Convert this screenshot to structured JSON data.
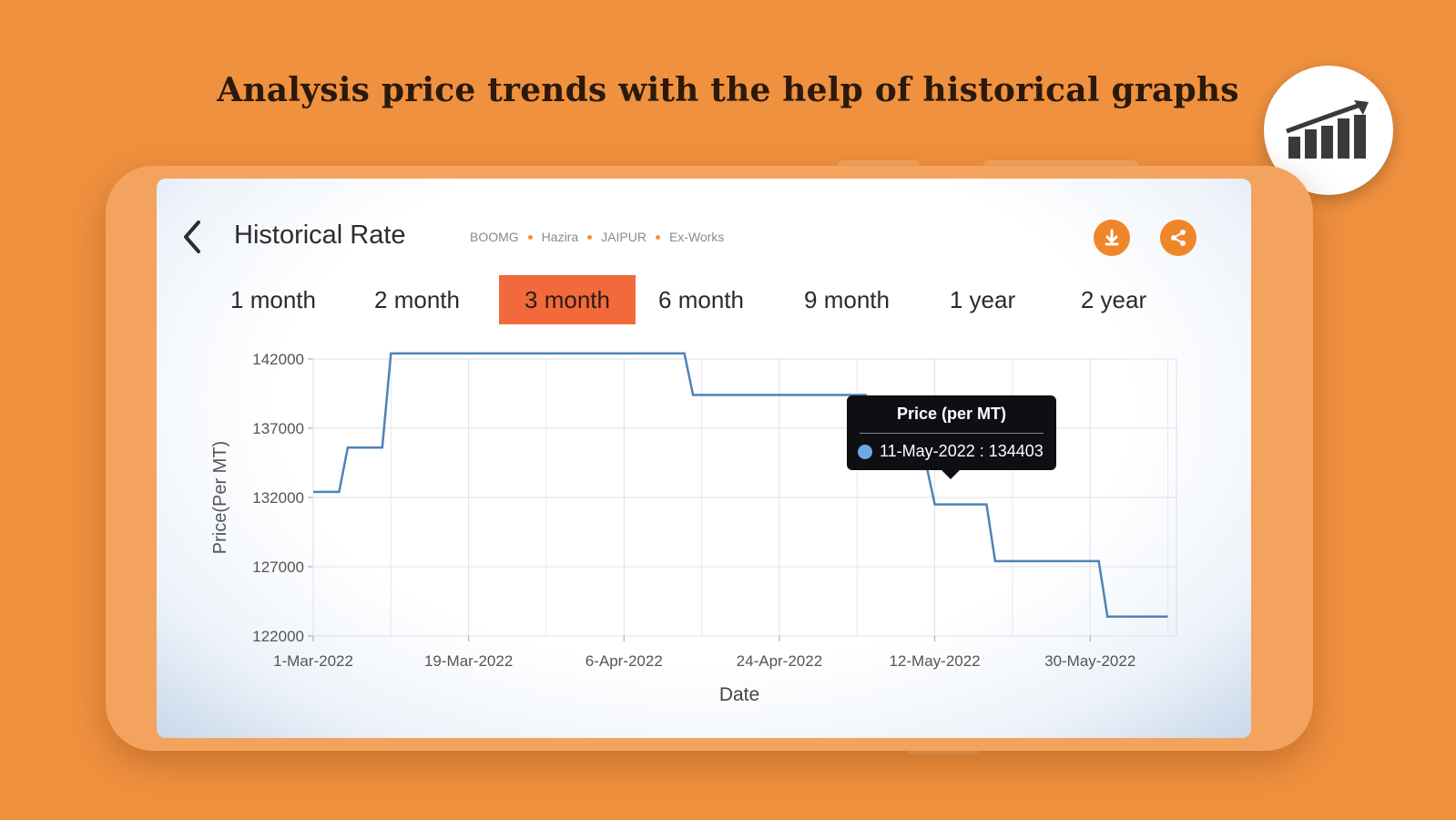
{
  "headline": "Analysis price trends with the help of historical graphs",
  "header": {
    "title": "Historical Rate",
    "breadcrumb": [
      "BOOMG",
      "Hazira",
      "JAIPUR",
      "Ex-Works"
    ]
  },
  "icons": {
    "back": "chevron-left-icon",
    "download": "download-icon",
    "share": "share-icon",
    "badge": "bar-chart-growth-icon"
  },
  "colors": {
    "background": "#f0913f",
    "accent": "#f0862a",
    "active_tab": "#f26a3b",
    "line": "#4f83b5"
  },
  "tabs": [
    {
      "label": "1 month",
      "active": false
    },
    {
      "label": "2 month",
      "active": false
    },
    {
      "label": "3 month",
      "active": true
    },
    {
      "label": "6 month",
      "active": false
    },
    {
      "label": "9 month",
      "active": false
    },
    {
      "label": "1 year",
      "active": false
    },
    {
      "label": "2 year",
      "active": false
    }
  ],
  "tooltip": {
    "title": "Price (per MT)",
    "value": "11-May-2022 : 134403"
  },
  "chart_data": {
    "type": "line",
    "xlabel": "Date",
    "ylabel": "Price(Per MT)",
    "x_tick_labels": [
      "1-Mar-2022",
      "19-Mar-2022",
      "6-Apr-2022",
      "24-Apr-2022",
      "12-May-2022",
      "30-May-2022"
    ],
    "y_ticks": [
      122000,
      127000,
      132000,
      137000,
      142000
    ],
    "ylim": [
      122000,
      142000
    ],
    "xlim": [
      "2022-03-01",
      "2022-06-09"
    ],
    "grid": true,
    "series": [
      {
        "points": [
          [
            "2022-03-01",
            132400
          ],
          [
            "2022-03-04",
            132400
          ],
          [
            "2022-03-05",
            135600
          ],
          [
            "2022-03-09",
            135600
          ],
          [
            "2022-03-10",
            142400
          ],
          [
            "2022-04-13",
            142400
          ],
          [
            "2022-04-14",
            139400
          ],
          [
            "2022-05-04",
            139400
          ],
          [
            "2022-05-05",
            134403
          ],
          [
            "2022-05-11",
            134403
          ],
          [
            "2022-05-12",
            131500
          ],
          [
            "2022-05-18",
            131500
          ],
          [
            "2022-05-19",
            127400
          ],
          [
            "2022-05-31",
            127400
          ],
          [
            "2022-06-01",
            123400
          ],
          [
            "2022-06-08",
            123400
          ]
        ]
      }
    ]
  }
}
